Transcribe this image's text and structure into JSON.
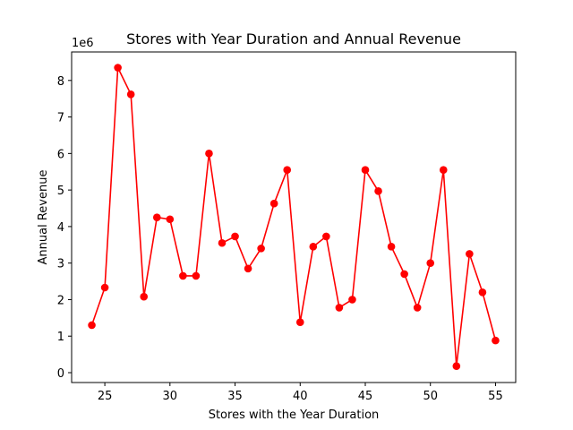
{
  "chart_data": {
    "type": "line",
    "title": "Stores with Year Duration and Annual Revenue",
    "xlabel": "Stores with the Year Duration",
    "ylabel": "Annual Revenue",
    "y_offset_text": "1e6",
    "xlim": [
      22.45,
      56.55
    ],
    "ylim": [
      -0.27,
      8.78
    ],
    "y_scale": 1000000,
    "x_ticks": [
      25,
      30,
      35,
      40,
      45,
      50,
      55
    ],
    "y_ticks": [
      0,
      1,
      2,
      3,
      4,
      5,
      6,
      7,
      8
    ],
    "grid": false,
    "legend": "none",
    "color": "#ff0000",
    "marker": "circle",
    "series": [
      {
        "x": [
          24,
          25,
          26,
          27,
          28,
          29,
          30,
          31,
          32,
          33,
          34,
          35,
          36,
          37,
          38,
          39,
          40,
          41,
          42,
          43,
          44,
          45,
          46,
          47,
          48,
          49,
          50,
          51,
          52,
          53,
          54,
          55
        ],
        "values": [
          1.3,
          2.33,
          8.35,
          7.62,
          2.08,
          4.25,
          4.2,
          2.65,
          2.65,
          6.0,
          3.55,
          3.73,
          2.85,
          3.4,
          4.63,
          5.55,
          1.38,
          3.45,
          3.73,
          1.78,
          2.0,
          5.55,
          4.97,
          3.45,
          2.7,
          1.78,
          3.0,
          5.55,
          0.18,
          3.25,
          2.2,
          0.88
        ]
      }
    ]
  }
}
